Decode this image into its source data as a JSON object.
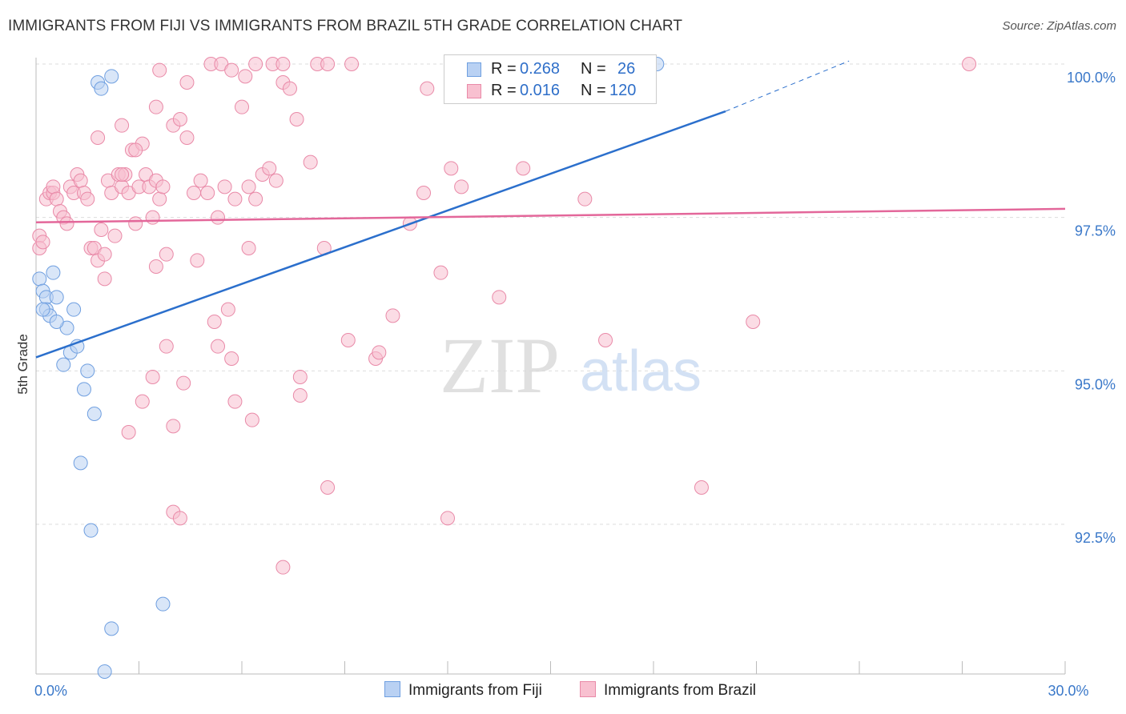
{
  "title": "IMMIGRANTS FROM FIJI VS IMMIGRANTS FROM BRAZIL 5TH GRADE CORRELATION CHART",
  "source": "Source: ZipAtlas.com",
  "watermark": {
    "zip": "ZIP",
    "atlas": "atlas"
  },
  "colors": {
    "fiji_fill": "#b9d1f3",
    "fiji_stroke": "#6f9fe0",
    "fiji_line": "#2b6fcc",
    "brazil_fill": "#f8c0d0",
    "brazil_stroke": "#e98aa8",
    "brazil_line": "#e3679a",
    "axis_text": "#3a78c9",
    "grid": "#dddddd"
  },
  "legend": {
    "fiji": {
      "r_label": "R = ",
      "r_value": "0.268",
      "n_label": "N = ",
      "n_value": "26"
    },
    "brazil": {
      "r_label": "R = ",
      "r_value": "0.016",
      "n_label": "N = ",
      "n_value": "120"
    }
  },
  "bottom_legend": {
    "fiji": "Immigrants from Fiji",
    "brazil": "Immigrants from Brazil"
  },
  "chart_data": {
    "type": "scatter",
    "title": "IMMIGRANTS FROM FIJI VS IMMIGRANTS FROM BRAZIL 5TH GRADE CORRELATION CHART",
    "xlabel": "",
    "ylabel": "5th Grade",
    "xlim": [
      0,
      30
    ],
    "ylim": [
      90.1,
      100.3
    ],
    "x_tick_labels": [
      {
        "value": 0,
        "label": "0.0%"
      },
      {
        "value": 30,
        "label": "30.0%"
      }
    ],
    "y_tick_labels": [
      {
        "value": 100,
        "label": "100.0%"
      },
      {
        "value": 97.5,
        "label": "97.5%"
      },
      {
        "value": 95,
        "label": "95.0%"
      },
      {
        "value": 92.5,
        "label": "92.5%"
      }
    ],
    "grid": true,
    "series": [
      {
        "name": "Immigrants from Fiji",
        "R": 0.268,
        "N": 26,
        "trend": {
          "x0": 0,
          "y0": 95.22,
          "x1": 20.1,
          "y1": 99.23,
          "dash_to_x": 23.7,
          "dash_to_y": 100.05
        },
        "points": [
          [
            0.1,
            96.5
          ],
          [
            0.2,
            96.3
          ],
          [
            0.3,
            96.2
          ],
          [
            0.3,
            96.0
          ],
          [
            0.4,
            95.9
          ],
          [
            0.5,
            96.6
          ],
          [
            0.6,
            96.2
          ],
          [
            1.1,
            96.0
          ],
          [
            0.9,
            95.7
          ],
          [
            1.0,
            95.3
          ],
          [
            1.2,
            95.4
          ],
          [
            0.8,
            95.1
          ],
          [
            1.5,
            95.0
          ],
          [
            1.4,
            94.7
          ],
          [
            1.7,
            94.3
          ],
          [
            1.3,
            93.5
          ],
          [
            1.6,
            92.4
          ],
          [
            2.2,
            99.8
          ],
          [
            1.8,
            99.7
          ],
          [
            1.9,
            99.6
          ],
          [
            18.1,
            100.0
          ],
          [
            3.7,
            91.2
          ],
          [
            2.2,
            90.8
          ],
          [
            2.0,
            90.1
          ],
          [
            0.2,
            96.0
          ],
          [
            0.6,
            95.8
          ]
        ]
      },
      {
        "name": "Immigrants from Brazil",
        "R": 0.016,
        "N": 120,
        "trend": {
          "x0": 0,
          "y0": 97.42,
          "x1": 30,
          "y1": 97.64
        },
        "points": [
          [
            0.1,
            97.2
          ],
          [
            0.1,
            97.0
          ],
          [
            0.2,
            97.1
          ],
          [
            0.3,
            97.8
          ],
          [
            0.4,
            97.9
          ],
          [
            0.5,
            97.9
          ],
          [
            0.5,
            98.0
          ],
          [
            0.6,
            97.8
          ],
          [
            0.7,
            97.6
          ],
          [
            0.8,
            97.5
          ],
          [
            0.9,
            97.4
          ],
          [
            1.0,
            98.0
          ],
          [
            1.1,
            97.9
          ],
          [
            1.2,
            98.2
          ],
          [
            1.3,
            98.1
          ],
          [
            1.4,
            97.9
          ],
          [
            1.5,
            97.8
          ],
          [
            1.6,
            97.0
          ],
          [
            1.7,
            97.0
          ],
          [
            1.8,
            96.8
          ],
          [
            1.9,
            97.3
          ],
          [
            2.0,
            96.9
          ],
          [
            2.1,
            98.1
          ],
          [
            2.2,
            97.9
          ],
          [
            2.3,
            97.2
          ],
          [
            2.4,
            98.2
          ],
          [
            2.5,
            98.0
          ],
          [
            2.6,
            98.2
          ],
          [
            2.7,
            97.9
          ],
          [
            2.8,
            98.6
          ],
          [
            2.9,
            97.4
          ],
          [
            3.0,
            98.0
          ],
          [
            3.1,
            98.7
          ],
          [
            3.2,
            98.2
          ],
          [
            3.3,
            98.0
          ],
          [
            3.4,
            97.5
          ],
          [
            3.5,
            98.1
          ],
          [
            3.6,
            97.8
          ],
          [
            3.7,
            98.0
          ],
          [
            3.8,
            96.9
          ],
          [
            4.0,
            99.0
          ],
          [
            4.2,
            99.1
          ],
          [
            4.4,
            98.8
          ],
          [
            4.6,
            97.9
          ],
          [
            4.8,
            98.1
          ],
          [
            5.0,
            97.9
          ],
          [
            5.3,
            97.5
          ],
          [
            5.5,
            98.0
          ],
          [
            5.8,
            97.8
          ],
          [
            6.0,
            99.3
          ],
          [
            6.2,
            98.0
          ],
          [
            6.4,
            97.8
          ],
          [
            6.6,
            98.2
          ],
          [
            6.8,
            98.3
          ],
          [
            7.0,
            98.1
          ],
          [
            7.2,
            99.7
          ],
          [
            7.4,
            99.6
          ],
          [
            7.6,
            99.1
          ],
          [
            8.0,
            98.4
          ],
          [
            1.8,
            98.8
          ],
          [
            2.5,
            99.0
          ],
          [
            2.9,
            98.6
          ],
          [
            3.6,
            99.9
          ],
          [
            4.4,
            99.7
          ],
          [
            5.1,
            100.0
          ],
          [
            5.4,
            100.0
          ],
          [
            5.7,
            99.9
          ],
          [
            6.1,
            99.8
          ],
          [
            6.4,
            100.0
          ],
          [
            6.9,
            100.0
          ],
          [
            7.2,
            100.0
          ],
          [
            8.2,
            100.0
          ],
          [
            9.2,
            100.0
          ],
          [
            11.4,
            99.6
          ],
          [
            12.3,
            100.0
          ],
          [
            13.0,
            100.0
          ],
          [
            15.6,
            100.0
          ],
          [
            27.2,
            100.0
          ],
          [
            8.5,
            100.0
          ],
          [
            3.5,
            99.3
          ],
          [
            2.0,
            96.5
          ],
          [
            3.5,
            96.7
          ],
          [
            4.7,
            96.8
          ],
          [
            5.6,
            96.0
          ],
          [
            6.2,
            97.0
          ],
          [
            5.2,
            95.8
          ],
          [
            3.8,
            95.4
          ],
          [
            5.3,
            95.4
          ],
          [
            5.7,
            95.2
          ],
          [
            3.4,
            94.9
          ],
          [
            4.3,
            94.8
          ],
          [
            3.1,
            94.5
          ],
          [
            5.8,
            94.5
          ],
          [
            2.7,
            94.0
          ],
          [
            4.0,
            94.1
          ],
          [
            6.3,
            94.2
          ],
          [
            7.7,
            94.9
          ],
          [
            7.7,
            94.6
          ],
          [
            8.4,
            97.0
          ],
          [
            9.1,
            95.5
          ],
          [
            9.9,
            95.2
          ],
          [
            10.0,
            95.3
          ],
          [
            10.4,
            95.9
          ],
          [
            10.9,
            97.4
          ],
          [
            11.3,
            97.9
          ],
          [
            11.8,
            96.6
          ],
          [
            12.1,
            98.3
          ],
          [
            12.4,
            98.0
          ],
          [
            13.5,
            96.2
          ],
          [
            14.2,
            98.3
          ],
          [
            16.0,
            97.8
          ],
          [
            16.6,
            95.5
          ],
          [
            20.9,
            95.8
          ],
          [
            12.0,
            92.6
          ],
          [
            8.5,
            93.1
          ],
          [
            4.0,
            92.7
          ],
          [
            4.2,
            92.6
          ],
          [
            7.2,
            91.8
          ],
          [
            19.4,
            93.1
          ],
          [
            2.5,
            98.2
          ]
        ]
      }
    ]
  }
}
